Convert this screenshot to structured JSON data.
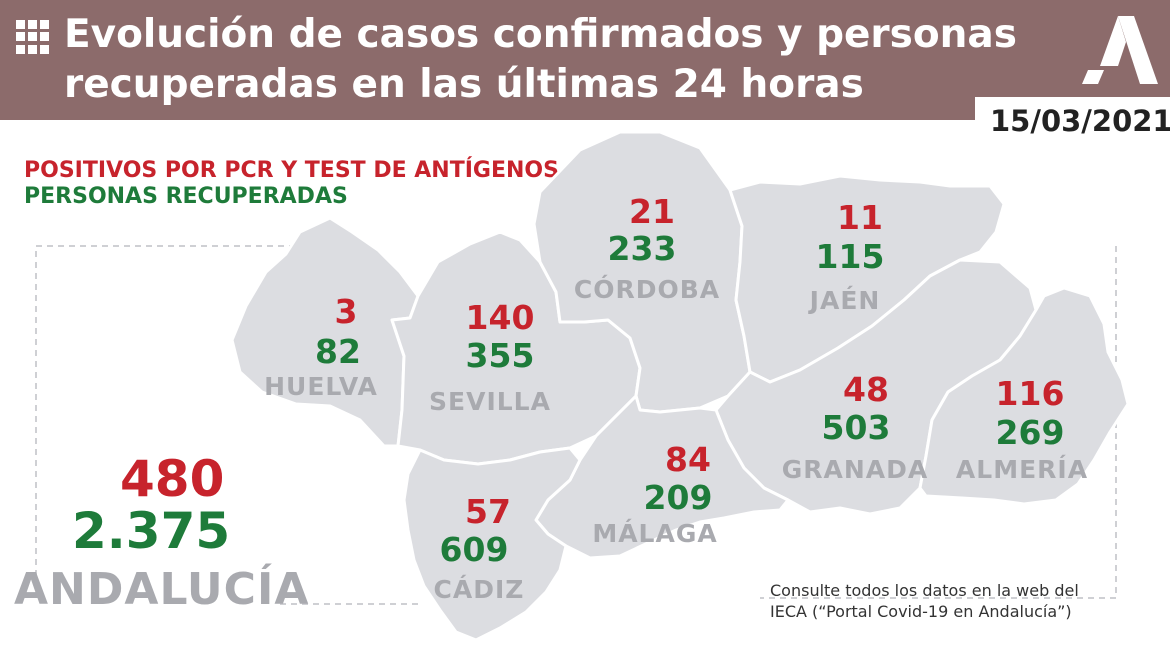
{
  "header": {
    "title": "Evolución de casos confirmados y personas\nrecuperadas en las últimas 24 horas",
    "date": "15/03/2021",
    "background": "#8c6b6b"
  },
  "legend": {
    "positives": "POSITIVOS POR PCR Y TEST DE ANTÍGENOS",
    "recovered": "PERSONAS RECUPERADAS",
    "positives_color": "#c7232c",
    "recovered_color": "#1e7b3a"
  },
  "provinces": {
    "huelva": {
      "name": "HUELVA",
      "positives": "3",
      "recovered": "82"
    },
    "sevilla": {
      "name": "SEVILLA",
      "positives": "140",
      "recovered": "355"
    },
    "cordoba": {
      "name": "CÓRDOBA",
      "positives": "21",
      "recovered": "233"
    },
    "jaen": {
      "name": "JAÉN",
      "positives": "11",
      "recovered": "115"
    },
    "granada": {
      "name": "GRANADA",
      "positives": "48",
      "recovered": "503"
    },
    "almeria": {
      "name": "ALMERÍA",
      "positives": "116",
      "recovered": "269"
    },
    "malaga": {
      "name": "MÁLAGA",
      "positives": "84",
      "recovered": "209"
    },
    "cadiz": {
      "name": "CÁDIZ",
      "positives": "57",
      "recovered": "609"
    }
  },
  "total": {
    "name": "ANDALUCÍA",
    "positives": "480",
    "recovered": "2.375"
  },
  "footnote": "Consulte todos los datos en la web del\nIECA (“Portal Covid-19 en Andalucía”)",
  "map_color": "#dcdde1",
  "border_color": "#ffffff"
}
